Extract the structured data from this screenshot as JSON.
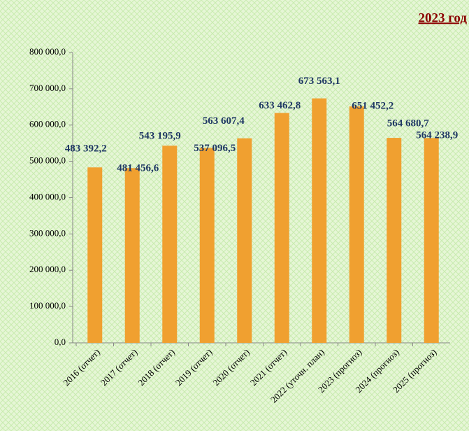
{
  "chart_data": {
    "type": "bar",
    "title": "2023 год",
    "categories": [
      "2016 (отчет)",
      "2017 (отчет)",
      "2018 (отчет)",
      "2019 (отчет)",
      "2020 (отчет)",
      "2021 (отчет)",
      "2022 (уточн. план)",
      "2023 (прогноз)",
      "2024 (прогноз)",
      "2025 (прогноз)"
    ],
    "values": [
      483392.2,
      481456.6,
      543195.9,
      537096.5,
      563607.4,
      633462.8,
      673563.1,
      651452.2,
      564680.7,
      564238.9
    ],
    "value_labels": [
      "483 392,2",
      "481 456,6",
      "543 195,9",
      "537 096,5",
      "563 607,4",
      "633 462,8",
      "673 563,1",
      "651 452,2",
      "564 680,7",
      "564 238,9"
    ],
    "color": "#f0a030",
    "ylim": [
      0,
      800000
    ],
    "yticks": [
      {
        "value": 0,
        "label": "0,0"
      },
      {
        "value": 100000,
        "label": "100 000,0"
      },
      {
        "value": 200000,
        "label": "200 000,0"
      },
      {
        "value": 300000,
        "label": "300 000,0"
      },
      {
        "value": 400000,
        "label": "400 000,0"
      },
      {
        "value": 500000,
        "label": "500 000,0"
      },
      {
        "value": 600000,
        "label": "600 000,0"
      },
      {
        "value": 700000,
        "label": "700 000,0"
      },
      {
        "value": 800000,
        "label": "800 000,0"
      }
    ],
    "grid": false
  }
}
